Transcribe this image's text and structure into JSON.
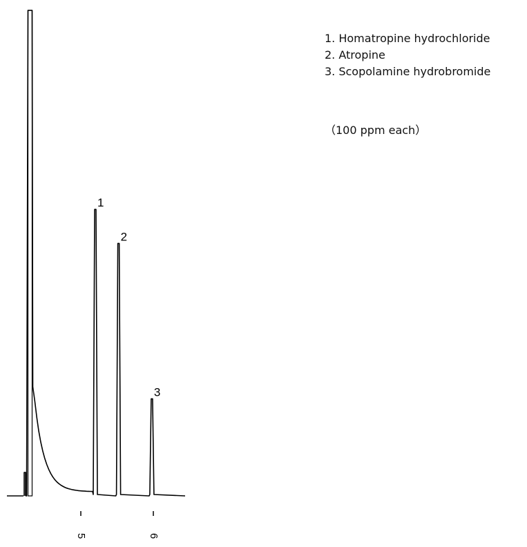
{
  "chart_data": {
    "type": "line",
    "title": "",
    "xlabel": "",
    "ylabel": "",
    "x_ticks": [
      {
        "value": 5,
        "label": "5"
      },
      {
        "value": 6,
        "label": "6"
      }
    ],
    "peaks": [
      {
        "label": "1",
        "name": "Homatropine hydrochloride",
        "x": 5.2,
        "height": 0.59
      },
      {
        "label": "2",
        "name": "Atropine",
        "x": 5.52,
        "height": 0.52
      },
      {
        "label": "3",
        "name": "Scopolamine hydrobromide",
        "x": 5.98,
        "height": 0.2
      }
    ],
    "solvent_peak": {
      "x": 4.3,
      "height": 1.0
    },
    "legend": [
      "1. Homatropine hydrochloride",
      "2. Atropine",
      "3. Scopolamine hydrobromide"
    ],
    "note": "（100 ppm each）",
    "series_color": "#000000"
  }
}
